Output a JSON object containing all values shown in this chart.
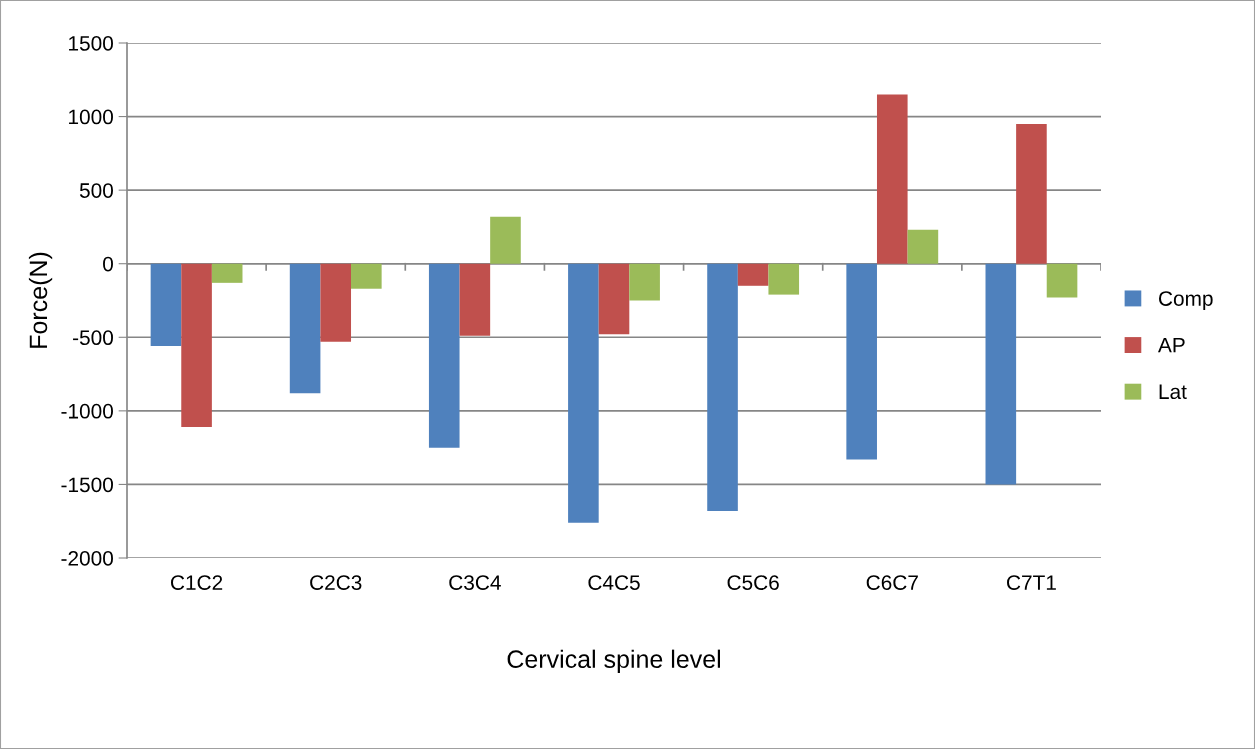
{
  "chart_data": {
    "type": "bar",
    "xlabel": "Cervical spine level",
    "ylabel": "Force(N)",
    "categories": [
      "C1C2",
      "C2C3",
      "C3C4",
      "C4C5",
      "C5C6",
      "C6C7",
      "C7T1"
    ],
    "series": [
      {
        "name": "Comp",
        "color": "#4f81bd",
        "values": [
          -560,
          -880,
          -1250,
          -1760,
          -1680,
          -1330,
          -1500
        ]
      },
      {
        "name": "AP",
        "color": "#c0504d",
        "values": [
          -1110,
          -530,
          -490,
          -480,
          -150,
          1150,
          950
        ]
      },
      {
        "name": "Lat",
        "color": "#9bbb59",
        "values": [
          -130,
          -170,
          320,
          -250,
          -210,
          230,
          -230
        ]
      }
    ],
    "ylim": [
      -2000,
      1500
    ],
    "yticks": [
      -2000,
      -1500,
      -1000,
      -500,
      0,
      500,
      1000,
      1500
    ],
    "grid": "y",
    "legend": "right"
  }
}
